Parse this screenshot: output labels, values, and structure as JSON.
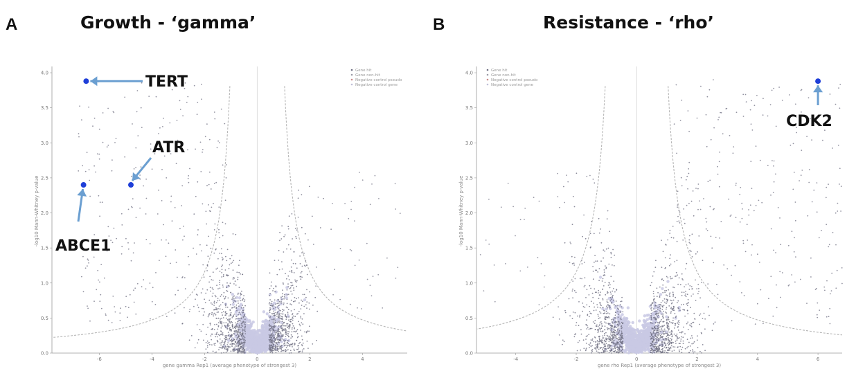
{
  "panels": [
    {
      "letter": "A",
      "title": "Growth - ‘gamma’"
    },
    {
      "letter": "B",
      "title": "Resistance - ‘rho’"
    }
  ],
  "colors": {
    "background_points": "#c9c9e4",
    "gene_points": "#6f6f82",
    "highlight_points": "#1f3fd8",
    "arrow": "#6b9fd1",
    "threshold": "#b5b5b5",
    "zero_line": "#dcdcdc"
  },
  "chart_data": [
    {
      "type": "scatter",
      "title": "Growth - ‘gamma’",
      "xlabel": "gene gamma Rep1 (average phenotype of strongest 3)",
      "ylabel": "-log10 Mann-Whitney p-value",
      "xlim": [
        -7.8,
        5.7
      ],
      "ylim": [
        0,
        4.05
      ],
      "x_ticks": [
        -6,
        -4,
        -2,
        0,
        2,
        4
      ],
      "y_ticks": [
        0.0,
        0.5,
        1.0,
        1.5,
        2.0,
        2.5,
        3.0,
        3.5,
        4.0
      ],
      "legend": {
        "position": "top-right",
        "entries": [
          "Gene hit",
          "Gene non-hit",
          "Negative control pseudo",
          "Negative control gene"
        ]
      },
      "highlighted_genes": [
        {
          "label": "TERT",
          "x": -6.5,
          "y": 3.88
        },
        {
          "label": "ATR",
          "x": -4.8,
          "y": 2.4
        },
        {
          "label": "ABCE1",
          "x": -6.6,
          "y": 2.4
        }
      ]
    },
    {
      "type": "scatter",
      "title": "Resistance - ‘rho’",
      "xlabel": "gene rho Rep1 (average phenotype of strongest 3)",
      "ylabel": "-log10 Mann-Whitney p-value",
      "xlim": [
        -5.3,
        6.8
      ],
      "ylim": [
        0,
        4.05
      ],
      "x_ticks": [
        -4,
        -2,
        0,
        2,
        4,
        6
      ],
      "y_ticks": [
        0.0,
        0.5,
        1.0,
        1.5,
        2.0,
        2.5,
        3.0,
        3.5,
        4.0
      ],
      "legend": {
        "position": "top-left",
        "entries": [
          "Gene hit",
          "Gene non-hit",
          "Negative control pseudo",
          "Negative control gene"
        ]
      },
      "highlighted_genes": [
        {
          "label": "CDK2",
          "x": 6.0,
          "y": 3.88
        }
      ]
    }
  ]
}
